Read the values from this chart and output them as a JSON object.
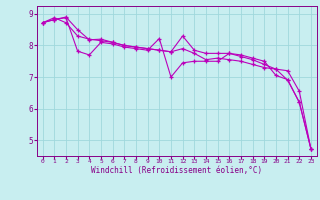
{
  "xlabel": "Windchill (Refroidissement éolien,°C)",
  "bg_color": "#c8eef0",
  "grid_color": "#a0d8dc",
  "line_color": "#bb00bb",
  "xlim": [
    -0.5,
    23.5
  ],
  "ylim": [
    4.5,
    9.25
  ],
  "yticks": [
    5,
    6,
    7,
    8,
    9
  ],
  "xticks": [
    0,
    1,
    2,
    3,
    4,
    5,
    6,
    7,
    8,
    9,
    10,
    11,
    12,
    13,
    14,
    15,
    16,
    17,
    18,
    19,
    20,
    21,
    22,
    23
  ],
  "series1_x": [
    0,
    1,
    2,
    3,
    4,
    5,
    6,
    7,
    8,
    9,
    10,
    11,
    12,
    13,
    14,
    15,
    16,
    17,
    18,
    19,
    20,
    21,
    22,
    23
  ],
  "series1_y": [
    8.72,
    8.82,
    8.9,
    8.5,
    8.18,
    8.2,
    8.1,
    8.0,
    7.95,
    7.9,
    7.85,
    7.8,
    8.3,
    7.85,
    7.75,
    7.75,
    7.75,
    7.7,
    7.6,
    7.5,
    7.05,
    6.92,
    6.2,
    4.72
  ],
  "series2_x": [
    0,
    1,
    2,
    3,
    4,
    5,
    6,
    7,
    8,
    9,
    10,
    11,
    12,
    13,
    14,
    15,
    16,
    17,
    18,
    19,
    20,
    21,
    22,
    23
  ],
  "series2_y": [
    8.72,
    8.88,
    8.72,
    8.3,
    8.2,
    8.15,
    8.1,
    8.0,
    7.95,
    7.9,
    7.85,
    7.8,
    7.9,
    7.75,
    7.55,
    7.6,
    7.55,
    7.5,
    7.4,
    7.3,
    7.25,
    6.9,
    6.2,
    4.72
  ],
  "series3_x": [
    0,
    1,
    2,
    3,
    4,
    5,
    6,
    7,
    8,
    9,
    10,
    11,
    12,
    13,
    14,
    15,
    16,
    17,
    18,
    19,
    20,
    21,
    22,
    23
  ],
  "series3_y": [
    8.72,
    8.82,
    8.88,
    7.82,
    7.7,
    8.1,
    8.05,
    7.95,
    7.9,
    7.85,
    8.22,
    7.0,
    7.45,
    7.5,
    7.5,
    7.5,
    7.75,
    7.65,
    7.55,
    7.4,
    7.25,
    7.2,
    6.55,
    4.72
  ]
}
